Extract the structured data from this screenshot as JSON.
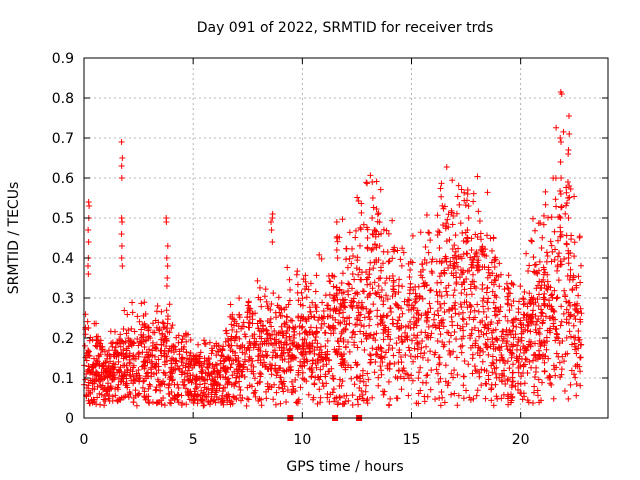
{
  "chart_data": {
    "type": "scatter",
    "title": "Day 091 of 2022, SRMTID for receiver trds",
    "xlabel": "GPS time / hours",
    "ylabel": "SRMTID / TECUs",
    "xlim": [
      0,
      24
    ],
    "ylim": [
      0,
      0.9
    ],
    "xticks": [
      0,
      5,
      10,
      15,
      20
    ],
    "xtick_labels": [
      "0",
      "5",
      "10",
      "15",
      "20"
    ],
    "yticks": [
      0,
      0.1,
      0.2,
      0.3,
      0.4,
      0.5,
      0.6,
      0.7,
      0.8,
      0.9
    ],
    "ytick_labels": [
      "0",
      "0.1",
      "0.2",
      "0.3",
      "0.4",
      "0.5",
      "0.6",
      "0.7",
      "0.8",
      "0.9"
    ],
    "grid": true,
    "marker": "plus",
    "color": "#ff0000",
    "baseline_levels": [
      [
        0.0,
        0.13
      ],
      [
        1.0,
        0.1
      ],
      [
        2.0,
        0.14
      ],
      [
        3.0,
        0.15
      ],
      [
        4.0,
        0.13
      ],
      [
        5.0,
        0.1
      ],
      [
        6.0,
        0.09
      ],
      [
        7.0,
        0.15
      ],
      [
        8.0,
        0.18
      ],
      [
        9.0,
        0.16
      ],
      [
        10.0,
        0.2
      ],
      [
        11.0,
        0.19
      ],
      [
        12.0,
        0.24
      ],
      [
        13.0,
        0.3
      ],
      [
        14.0,
        0.25
      ],
      [
        15.0,
        0.22
      ],
      [
        16.0,
        0.28
      ],
      [
        17.0,
        0.32
      ],
      [
        18.0,
        0.3
      ],
      [
        19.0,
        0.22
      ],
      [
        20.0,
        0.18
      ],
      [
        21.0,
        0.28
      ],
      [
        22.0,
        0.35
      ],
      [
        22.8,
        0.2
      ]
    ],
    "points_per_hour": 130,
    "spikes": [
      {
        "x": 0.2,
        "values": [
          0.53,
          0.54,
          0.5,
          0.47,
          0.44,
          0.4,
          0.38,
          0.36
        ]
      },
      {
        "x": 1.75,
        "values": [
          0.69,
          0.65,
          0.63,
          0.6,
          0.5,
          0.49,
          0.46,
          0.43,
          0.4,
          0.38
        ]
      },
      {
        "x": 3.8,
        "values": [
          0.5,
          0.49,
          0.43,
          0.4,
          0.38,
          0.35,
          0.33
        ]
      },
      {
        "x": 8.6,
        "values": [
          0.51,
          0.5,
          0.49,
          0.47,
          0.44
        ]
      },
      {
        "x": 11.6,
        "values": [
          0.49,
          0.45,
          0.42,
          0.4
        ]
      },
      {
        "x": 13.2,
        "values": [
          0.59,
          0.55,
          0.5,
          0.46,
          0.42
        ]
      },
      {
        "x": 17.6,
        "values": [
          0.57,
          0.56,
          0.53,
          0.5,
          0.47,
          0.45
        ]
      },
      {
        "x": 21.85,
        "values": [
          0.815,
          0.81,
          0.7,
          0.69,
          0.64,
          0.6,
          0.56,
          0.5
        ]
      },
      {
        "x": 22.2,
        "values": [
          0.755,
          0.71,
          0.67,
          0.66,
          0.59,
          0.58,
          0.55,
          0.5
        ]
      }
    ],
    "data_gaps": [
      9.45,
      11.5,
      12.6
    ]
  }
}
